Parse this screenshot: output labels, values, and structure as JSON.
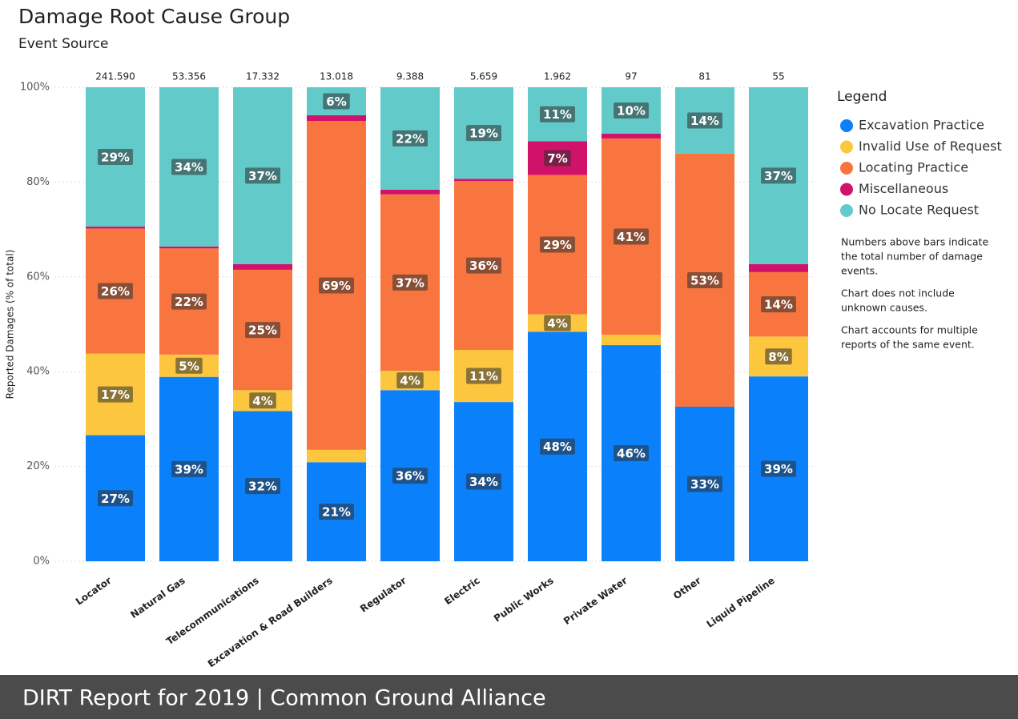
{
  "chart_data": {
    "type": "stacked_bar_100",
    "title": "Damage Root Cause Group",
    "subtitle": "Event Source",
    "y_axis_label": "Reported Damages (% of total)",
    "categories": [
      "Locator",
      "Natural Gas",
      "Telecommunications",
      "Excavation & Road Builders",
      "Regulator",
      "Electric",
      "Public Works",
      "Private Water",
      "Other",
      "Liquid Pipeline"
    ],
    "totals": [
      {
        "value": 241590,
        "label": "241.590"
      },
      {
        "value": 53356,
        "label": "53.356"
      },
      {
        "value": 17332,
        "label": "17.332"
      },
      {
        "value": 13018,
        "label": "13.018"
      },
      {
        "value": 9388,
        "label": "9.388"
      },
      {
        "value": 5659,
        "label": "5.659"
      },
      {
        "value": 1962,
        "label": "1.962"
      },
      97,
      81,
      55
    ],
    "series": [
      {
        "name": "Excavation Practice",
        "color": "#0b80fb",
        "values": [
          26.6,
          38.9,
          31.7,
          20.9,
          36.1,
          33.6,
          48.4,
          45.6,
          32.6,
          39.0
        ],
        "value_labels": [
          "27%",
          "39%",
          "32%",
          "21%",
          "36%",
          "34%",
          "48%",
          "46%",
          "33%",
          "39%"
        ]
      },
      {
        "name": "Invalid Use of Request",
        "color": "#fcc73f",
        "values": [
          17.2,
          4.7,
          4.4,
          2.6,
          4.1,
          11.0,
          3.7,
          2.2,
          0,
          8.4
        ],
        "value_labels": [
          "17%",
          "5%",
          "4%",
          null,
          "4%",
          "11%",
          "4%",
          null,
          null,
          "8%"
        ]
      },
      {
        "name": "Locating Practice",
        "color": "#f97540",
        "values": [
          26.4,
          22.4,
          25.4,
          69.4,
          37.2,
          35.6,
          29.4,
          41.4,
          53.4,
          13.6
        ],
        "value_labels": [
          "26%",
          "22%",
          "25%",
          "69%",
          "37%",
          "36%",
          "29%",
          "41%",
          "53%",
          "14%"
        ]
      },
      {
        "name": "Miscellaneous",
        "color": "#d1126a",
        "values": [
          0.4,
          0.4,
          1.2,
          1.2,
          1.0,
          0.5,
          7.1,
          1.0,
          0,
          1.7
        ],
        "value_labels": [
          null,
          null,
          null,
          null,
          null,
          null,
          "7%",
          null,
          null,
          null
        ]
      },
      {
        "name": "No Locate Request",
        "color": "#62cbc9",
        "values": [
          29.4,
          33.6,
          37.3,
          5.9,
          21.6,
          19.3,
          11.4,
          9.8,
          14.0,
          37.3
        ],
        "value_labels": [
          "29%",
          "34%",
          "37%",
          "6%",
          "22%",
          "19%",
          "11%",
          "10%",
          "14%",
          "37%"
        ]
      }
    ],
    "ylim": [
      0,
      100
    ],
    "yticks": [
      {
        "value": 0,
        "label": "0%"
      },
      {
        "value": 20,
        "label": "20%"
      },
      {
        "value": 40,
        "label": "40%"
      },
      {
        "value": 60,
        "label": "60%"
      },
      {
        "value": 80,
        "label": "80%"
      },
      {
        "value": 100,
        "label": "100%"
      }
    ],
    "grid": true,
    "legend_title": "Legend",
    "legend_position": "right",
    "notes": [
      [
        "Numbers above bars indicate",
        "the total number of damage",
        "events."
      ],
      [
        "Chart does not include",
        "unknown causes."
      ],
      [
        "Chart accounts for multiple",
        "reports of the same event."
      ]
    ]
  },
  "footer": "DIRT Report for 2019  | Common Ground Alliance"
}
